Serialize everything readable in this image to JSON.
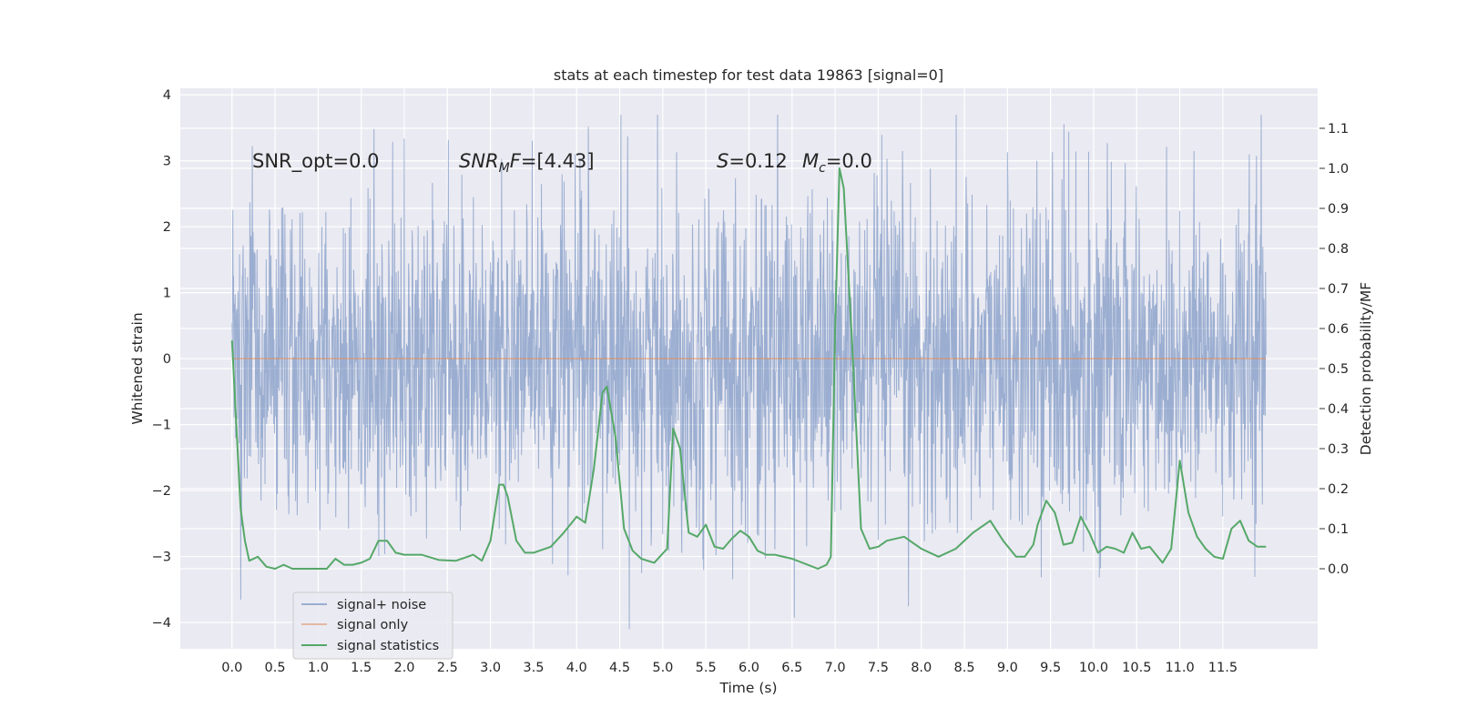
{
  "chart_data": {
    "type": "line",
    "title": "stats at each timestep for test data 19863 [signal=0]",
    "xlabel": "Time (s)",
    "ylabel": "Whitened strain",
    "ylabel_right": "Detection probability/MF",
    "xlim": [
      -0.6,
      12.6
    ],
    "ylim": [
      -4.4,
      4.1
    ],
    "ylim_right": [
      -0.2,
      1.2
    ],
    "x_ticks": [
      "0.0",
      "0.5",
      "1.0",
      "1.5",
      "2.0",
      "2.5",
      "3.0",
      "3.5",
      "4.0",
      "4.5",
      "5.0",
      "5.5",
      "6.0",
      "6.5",
      "7.0",
      "7.5",
      "8.0",
      "8.5",
      "9.0",
      "9.5",
      "10.0",
      "10.5",
      "11.0",
      "11.5"
    ],
    "y_ticks": [
      "−4",
      "−3",
      "−2",
      "−1",
      "0",
      "1",
      "2",
      "3",
      "4"
    ],
    "y_ticks_right": [
      "0.0",
      "0.1",
      "0.2",
      "0.3",
      "0.4",
      "0.5",
      "0.6",
      "0.7",
      "0.8",
      "0.9",
      "1.0",
      "1.1"
    ],
    "grid": true,
    "legend_position": "lower-left",
    "annotations": {
      "snr_opt": "SNR_opt=0.0",
      "snr_mf": "=[4.43]",
      "s_stat": "=0.12",
      "mc": "=0.0"
    },
    "series": [
      {
        "name": "signal+ noise",
        "color": "#4c72b0",
        "x_range": [
          0.0,
          12.0
        ],
        "envelope": {
          "approx_upper_typical": 2.3,
          "approx_lower_typical": -2.3,
          "max": 3.7,
          "min": -4.1
        }
      },
      {
        "name": "signal only",
        "color": "#dd8452",
        "x": [
          0.0,
          12.0
        ],
        "y": [
          0.0,
          0.0
        ]
      },
      {
        "name": "signal statistics",
        "color": "#55a868",
        "axis": "right",
        "x": [
          0.0,
          0.1,
          0.15,
          0.2,
          0.3,
          0.4,
          0.5,
          0.6,
          0.7,
          0.8,
          1.0,
          1.1,
          1.2,
          1.3,
          1.4,
          1.5,
          1.6,
          1.7,
          1.8,
          1.9,
          2.0,
          2.2,
          2.4,
          2.6,
          2.8,
          2.9,
          3.0,
          3.1,
          3.15,
          3.2,
          3.3,
          3.4,
          3.5,
          3.7,
          3.85,
          4.0,
          4.1,
          4.2,
          4.3,
          4.35,
          4.45,
          4.55,
          4.65,
          4.75,
          4.9,
          5.05,
          5.12,
          5.2,
          5.3,
          5.4,
          5.5,
          5.6,
          5.7,
          5.8,
          5.9,
          6.0,
          6.1,
          6.2,
          6.3,
          6.5,
          6.8,
          6.9,
          6.95,
          7.0,
          7.05,
          7.1,
          7.2,
          7.3,
          7.4,
          7.5,
          7.6,
          7.8,
          8.0,
          8.2,
          8.4,
          8.6,
          8.8,
          8.95,
          9.1,
          9.2,
          9.3,
          9.35,
          9.45,
          9.55,
          9.65,
          9.75,
          9.85,
          9.95,
          10.05,
          10.15,
          10.25,
          10.35,
          10.45,
          10.55,
          10.65,
          10.8,
          10.9,
          11.0,
          11.1,
          11.2,
          11.3,
          11.4,
          11.5,
          11.6,
          11.7,
          11.8,
          11.9,
          12.0
        ],
        "y": [
          0.57,
          0.15,
          0.07,
          0.02,
          0.03,
          0.005,
          0.0,
          0.01,
          0.0,
          0.0,
          0.0,
          0.0,
          0.025,
          0.01,
          0.01,
          0.015,
          0.025,
          0.07,
          0.07,
          0.04,
          0.035,
          0.035,
          0.022,
          0.02,
          0.035,
          0.02,
          0.07,
          0.21,
          0.21,
          0.18,
          0.07,
          0.04,
          0.04,
          0.055,
          0.09,
          0.13,
          0.115,
          0.25,
          0.44,
          0.455,
          0.33,
          0.1,
          0.045,
          0.025,
          0.015,
          0.05,
          0.35,
          0.3,
          0.09,
          0.08,
          0.11,
          0.055,
          0.05,
          0.075,
          0.095,
          0.08,
          0.045,
          0.035,
          0.035,
          0.025,
          0.0,
          0.01,
          0.03,
          0.6,
          1.0,
          0.95,
          0.55,
          0.1,
          0.05,
          0.055,
          0.07,
          0.08,
          0.05,
          0.03,
          0.05,
          0.09,
          0.12,
          0.07,
          0.03,
          0.03,
          0.06,
          0.11,
          0.17,
          0.14,
          0.06,
          0.065,
          0.13,
          0.09,
          0.04,
          0.055,
          0.05,
          0.04,
          0.09,
          0.05,
          0.055,
          0.015,
          0.05,
          0.27,
          0.14,
          0.08,
          0.05,
          0.03,
          0.025,
          0.1,
          0.12,
          0.07,
          0.055,
          0.055
        ]
      }
    ]
  }
}
